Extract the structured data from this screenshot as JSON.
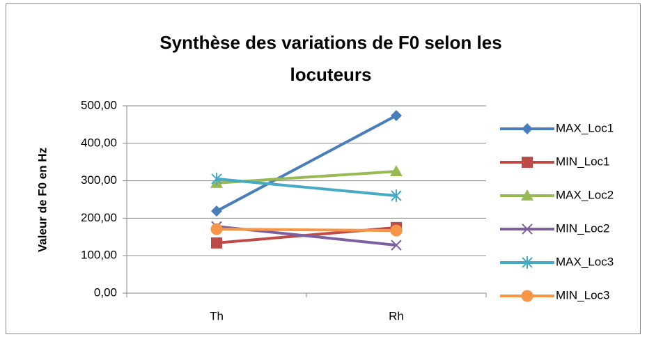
{
  "chart_data": {
    "type": "line",
    "title": "Synthèse des variations de F0 selon les locuteurs",
    "y_label": "Valeur de F0 en Hz",
    "categories": [
      "Th",
      "Rh"
    ],
    "series": [
      {
        "name": "MAX_Loc1",
        "color": "#4a7ebb",
        "marker": "diamond",
        "values": [
          219,
          474
        ]
      },
      {
        "name": "MIN_Loc1",
        "color": "#be4b48",
        "marker": "square",
        "values": [
          134,
          175
        ]
      },
      {
        "name": "MAX_Loc2",
        "color": "#98b954",
        "marker": "triangle",
        "values": [
          294,
          325
        ]
      },
      {
        "name": "MIN_Loc2",
        "color": "#7d60a0",
        "marker": "x",
        "values": [
          178,
          128
        ]
      },
      {
        "name": "MAX_Loc3",
        "color": "#46aac5",
        "marker": "star",
        "values": [
          305,
          260
        ]
      },
      {
        "name": "MIN_Loc3",
        "color": "#f79646",
        "marker": "circle",
        "values": [
          171,
          167
        ]
      }
    ],
    "ylim": [
      0,
      500
    ],
    "yticks": [
      {
        "value": 0,
        "label": "0,00"
      },
      {
        "value": 100,
        "label": "100,00"
      },
      {
        "value": 200,
        "label": "200,00"
      },
      {
        "value": 300,
        "label": "300,00"
      },
      {
        "value": 400,
        "label": "400,00"
      },
      {
        "value": 500,
        "label": "500,00"
      }
    ],
    "grid": true,
    "legend": "right"
  }
}
